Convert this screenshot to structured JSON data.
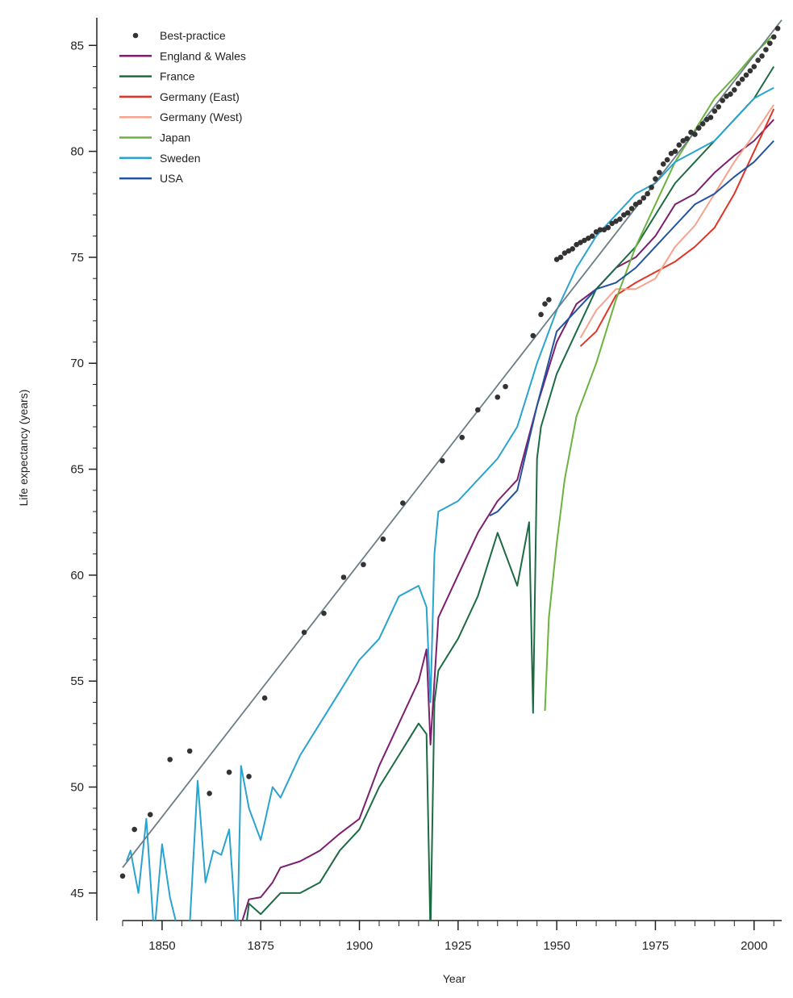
{
  "chart_data": {
    "type": "line",
    "xlabel": "Year",
    "ylabel": "Life expectancy (years)",
    "xlim": [
      1840,
      2007
    ],
    "ylim": [
      43.7,
      86
    ],
    "x_ticks": [
      1850,
      1875,
      1900,
      1925,
      1950,
      1975,
      2000
    ],
    "y_ticks": [
      45,
      50,
      55,
      60,
      65,
      70,
      75,
      80,
      85
    ],
    "legend_position": "top-left",
    "trend_line": {
      "x": [
        1840,
        2007
      ],
      "y": [
        46.2,
        86.2
      ],
      "color": "#6d7d85"
    },
    "best_practice": {
      "name": "Best-practice",
      "color": "#333333",
      "x": [
        1840,
        1843,
        1847,
        1852,
        1857,
        1862,
        1867,
        1872,
        1876,
        1886,
        1891,
        1896,
        1901,
        1906,
        1911,
        1921,
        1926,
        1930,
        1935,
        1937,
        1944,
        1946,
        1947,
        1948,
        1950,
        1951,
        1952,
        1953,
        1954,
        1955,
        1956,
        1957,
        1958,
        1959,
        1960,
        1961,
        1962,
        1963,
        1964,
        1965,
        1966,
        1967,
        1968,
        1969,
        1970,
        1971,
        1972,
        1973,
        1974,
        1975,
        1976,
        1977,
        1978,
        1979,
        1980,
        1981,
        1982,
        1983,
        1984,
        1985,
        1986,
        1987,
        1988,
        1989,
        1990,
        1991,
        1992,
        1993,
        1994,
        1995,
        1996,
        1997,
        1998,
        1999,
        2000,
        2001,
        2002,
        2003,
        2004,
        2005,
        2006
      ],
      "y": [
        45.8,
        48.0,
        48.7,
        51.3,
        51.7,
        49.7,
        50.7,
        50.5,
        54.2,
        57.3,
        58.2,
        59.9,
        60.5,
        61.7,
        63.4,
        65.4,
        66.5,
        67.8,
        68.4,
        68.9,
        71.3,
        72.3,
        72.8,
        73.0,
        74.9,
        75.0,
        75.2,
        75.3,
        75.4,
        75.6,
        75.7,
        75.8,
        75.9,
        76.0,
        76.2,
        76.3,
        76.3,
        76.4,
        76.6,
        76.7,
        76.8,
        77.0,
        77.1,
        77.3,
        77.5,
        77.6,
        77.8,
        78.0,
        78.3,
        78.7,
        79.0,
        79.4,
        79.6,
        79.9,
        80.0,
        80.3,
        80.5,
        80.6,
        80.9,
        80.8,
        81.1,
        81.3,
        81.5,
        81.6,
        81.9,
        82.1,
        82.4,
        82.6,
        82.7,
        82.9,
        83.2,
        83.4,
        83.6,
        83.8,
        84.0,
        84.3,
        84.5,
        84.8,
        85.1,
        85.4,
        85.8
      ]
    },
    "series": [
      {
        "name": "England & Wales",
        "color": "#7b1f6e",
        "x": [
          1841,
          1845,
          1850,
          1855,
          1860,
          1865,
          1870,
          1872,
          1875,
          1878,
          1880,
          1885,
          1890,
          1895,
          1900,
          1905,
          1910,
          1915,
          1917,
          1918,
          1920,
          1925,
          1930,
          1935,
          1940,
          1945,
          1950,
          1955,
          1960,
          1965,
          1970,
          1975,
          1980,
          1985,
          1990,
          1995,
          2000,
          2005
        ],
        "y": [
          41.0,
          41.5,
          40.5,
          41.2,
          41.8,
          42.3,
          43.5,
          44.7,
          44.8,
          45.5,
          46.2,
          46.5,
          47.0,
          47.8,
          48.5,
          51.0,
          53.0,
          55.0,
          56.5,
          52.0,
          58.0,
          60.0,
          62.0,
          63.5,
          64.5,
          68.0,
          71.0,
          72.8,
          73.5,
          74.5,
          75.0,
          76.0,
          77.5,
          78.0,
          79.0,
          79.8,
          80.5,
          81.5
        ]
      },
      {
        "name": "France",
        "color": "#1d6b43",
        "x": [
          1841,
          1845,
          1850,
          1855,
          1860,
          1865,
          1870,
          1872,
          1875,
          1880,
          1885,
          1890,
          1895,
          1900,
          1905,
          1910,
          1915,
          1917,
          1918,
          1919,
          1920,
          1925,
          1930,
          1935,
          1940,
          1943,
          1944,
          1945,
          1946,
          1950,
          1955,
          1960,
          1965,
          1970,
          1975,
          1980,
          1985,
          1990,
          1995,
          2000,
          2005
        ],
        "y": [
          42.0,
          43.5,
          41.5,
          42.0,
          42.5,
          42.0,
          41.5,
          44.5,
          44.0,
          45.0,
          45.0,
          45.5,
          47.0,
          48.0,
          50.0,
          51.5,
          53.0,
          52.5,
          43.0,
          54.0,
          55.5,
          57.0,
          59.0,
          62.0,
          59.5,
          62.5,
          53.5,
          65.5,
          67.0,
          69.5,
          71.5,
          73.5,
          74.5,
          75.5,
          77.0,
          78.5,
          79.5,
          80.5,
          81.5,
          82.5,
          84.0
        ]
      },
      {
        "name": "Germany (East)",
        "color": "#e03527",
        "x": [
          1956,
          1960,
          1965,
          1970,
          1975,
          1980,
          1985,
          1990,
          1995,
          2000,
          2005
        ],
        "y": [
          70.8,
          71.5,
          73.2,
          73.8,
          74.3,
          74.8,
          75.5,
          76.4,
          78.0,
          80.0,
          82.0
        ]
      },
      {
        "name": "Germany (West)",
        "color": "#f5a38d",
        "x": [
          1956,
          1960,
          1965,
          1970,
          1975,
          1980,
          1985,
          1990,
          1995,
          2000,
          2005
        ],
        "y": [
          71.2,
          72.5,
          73.5,
          73.5,
          74.0,
          75.5,
          76.5,
          78.0,
          79.5,
          80.8,
          82.2
        ]
      },
      {
        "name": "Japan",
        "color": "#6cb33f",
        "x": [
          1947,
          1948,
          1950,
          1952,
          1955,
          1960,
          1965,
          1970,
          1975,
          1980,
          1985,
          1990,
          1995,
          2000,
          2005
        ],
        "y": [
          53.6,
          58.0,
          61.5,
          64.5,
          67.5,
          70.0,
          73.0,
          75.5,
          77.5,
          79.5,
          81.0,
          82.5,
          83.5,
          84.6,
          85.5
        ]
      },
      {
        "name": "Sweden",
        "color": "#2aa3cf",
        "x": [
          1841,
          1842,
          1844,
          1846,
          1848,
          1850,
          1852,
          1855,
          1857,
          1859,
          1861,
          1863,
          1865,
          1867,
          1869,
          1870,
          1872,
          1875,
          1878,
          1880,
          1885,
          1890,
          1895,
          1900,
          1905,
          1910,
          1915,
          1917,
          1918,
          1919,
          1920,
          1925,
          1930,
          1935,
          1940,
          1945,
          1950,
          1955,
          1960,
          1965,
          1970,
          1975,
          1980,
          1985,
          1990,
          1995,
          2000,
          2005
        ],
        "y": [
          46.5,
          47.0,
          45.0,
          48.5,
          43.0,
          47.3,
          44.8,
          42.5,
          43.5,
          50.3,
          45.5,
          47.0,
          46.8,
          48.0,
          42.5,
          51.0,
          49.0,
          47.5,
          50.0,
          49.5,
          51.5,
          53.0,
          54.5,
          56.0,
          57.0,
          59.0,
          59.5,
          58.5,
          54.0,
          61.0,
          63.0,
          63.5,
          64.5,
          65.5,
          67.0,
          70.0,
          72.5,
          74.5,
          76.0,
          77.0,
          78.0,
          78.5,
          79.5,
          80.0,
          80.5,
          81.5,
          82.5,
          83.0
        ]
      },
      {
        "name": "USA",
        "color": "#22539f",
        "x": [
          1933,
          1935,
          1940,
          1945,
          1950,
          1955,
          1960,
          1965,
          1970,
          1975,
          1980,
          1985,
          1990,
          1995,
          2000,
          2005
        ],
        "y": [
          62.8,
          63.0,
          64.0,
          68.0,
          71.5,
          72.5,
          73.5,
          73.8,
          74.5,
          75.5,
          76.5,
          77.5,
          78.0,
          78.8,
          79.5,
          80.5
        ]
      }
    ]
  }
}
